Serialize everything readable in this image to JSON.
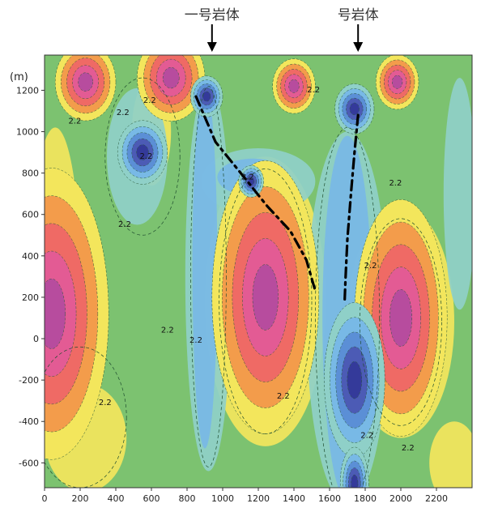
{
  "chart_data": {
    "type": "heatmap",
    "title": "",
    "xlabel": "",
    "ylabel": "(m)",
    "xlim": [
      0,
      2400
    ],
    "ylim": [
      -720,
      1370
    ],
    "x_ticks": [
      "0",
      "200",
      "400",
      "600",
      "800",
      "1000",
      "1200",
      "1400",
      "1600",
      "1800",
      "2000",
      "2200"
    ],
    "x_tick_values": [
      0,
      200,
      400,
      600,
      800,
      1000,
      1200,
      1400,
      1600,
      1800,
      2000,
      2200
    ],
    "y_ticks": [
      "1200",
      "1000",
      "800",
      "600",
      "400",
      "200",
      "0",
      "-200",
      "-400",
      "-600"
    ],
    "y_tick_values": [
      1200,
      1000,
      800,
      600,
      400,
      200,
      0,
      -200,
      -400,
      -600
    ],
    "contour_label_text": "2.2",
    "contour_labels": [
      {
        "x": 170,
        "y": 1040
      },
      {
        "x": 440,
        "y": 1080
      },
      {
        "x": 590,
        "y": 1140
      },
      {
        "x": 450,
        "y": 540
      },
      {
        "x": 1510,
        "y": 1190
      },
      {
        "x": 1970,
        "y": 740
      },
      {
        "x": 570,
        "y": 870
      },
      {
        "x": 1140,
        "y": 770
      },
      {
        "x": 1830,
        "y": 340
      },
      {
        "x": 690,
        "y": 30
      },
      {
        "x": 850,
        "y": -20
      },
      {
        "x": 340,
        "y": -320
      },
      {
        "x": 1340,
        "y": -290
      },
      {
        "x": 2040,
        "y": -540
      },
      {
        "x": 1810,
        "y": -480
      }
    ],
    "fault_lines": [
      {
        "points": [
          [
            850,
            1170
          ],
          [
            960,
            950
          ],
          [
            1120,
            780
          ],
          [
            1250,
            640
          ],
          [
            1380,
            520
          ],
          [
            1470,
            380
          ],
          [
            1520,
            230
          ]
        ]
      },
      {
        "points": [
          [
            1760,
            1080
          ],
          [
            1740,
            900
          ],
          [
            1720,
            700
          ],
          [
            1700,
            480
          ],
          [
            1690,
            300
          ],
          [
            1685,
            190
          ]
        ]
      }
    ],
    "arrows": [
      {
        "label": "一号岩体",
        "x": 940
      },
      {
        "label": "号岩体",
        "x": 1760
      }
    ],
    "highs": [
      {
        "x": 230,
        "y": 1240,
        "r": 170
      },
      {
        "x": 710,
        "y": 1260,
        "r": 190
      },
      {
        "x": 1400,
        "y": 1220,
        "r": 120
      },
      {
        "x": 1980,
        "y": 1240,
        "r": 120
      },
      {
        "x": 1240,
        "y": 200,
        "r": 300
      },
      {
        "x": 2000,
        "y": 100,
        "r": 260
      },
      {
        "x": 40,
        "y": 120,
        "r": 320
      }
    ],
    "lows": [
      {
        "x": 910,
        "y": 1170,
        "r": 90
      },
      {
        "x": 1740,
        "y": 1110,
        "r": 110
      },
      {
        "x": 1740,
        "y": -200,
        "r": 170
      },
      {
        "x": 1740,
        "y": -700,
        "r": 80
      },
      {
        "x": 550,
        "y": 900,
        "r": 140
      },
      {
        "x": 1160,
        "y": 760,
        "r": 70
      }
    ],
    "colors": {
      "background": "#7cc270",
      "yellow": "#f3e65c",
      "orange": "#f39c4b",
      "red": "#ef6a65",
      "pink": "#e35b94",
      "magenta": "#b74c9e",
      "cyan": "#8fd0c8",
      "light_blue": "#78b9e6",
      "blue": "#5b8fd6",
      "dark_blue": "#4c5bb5",
      "navy": "#343a9a"
    }
  }
}
